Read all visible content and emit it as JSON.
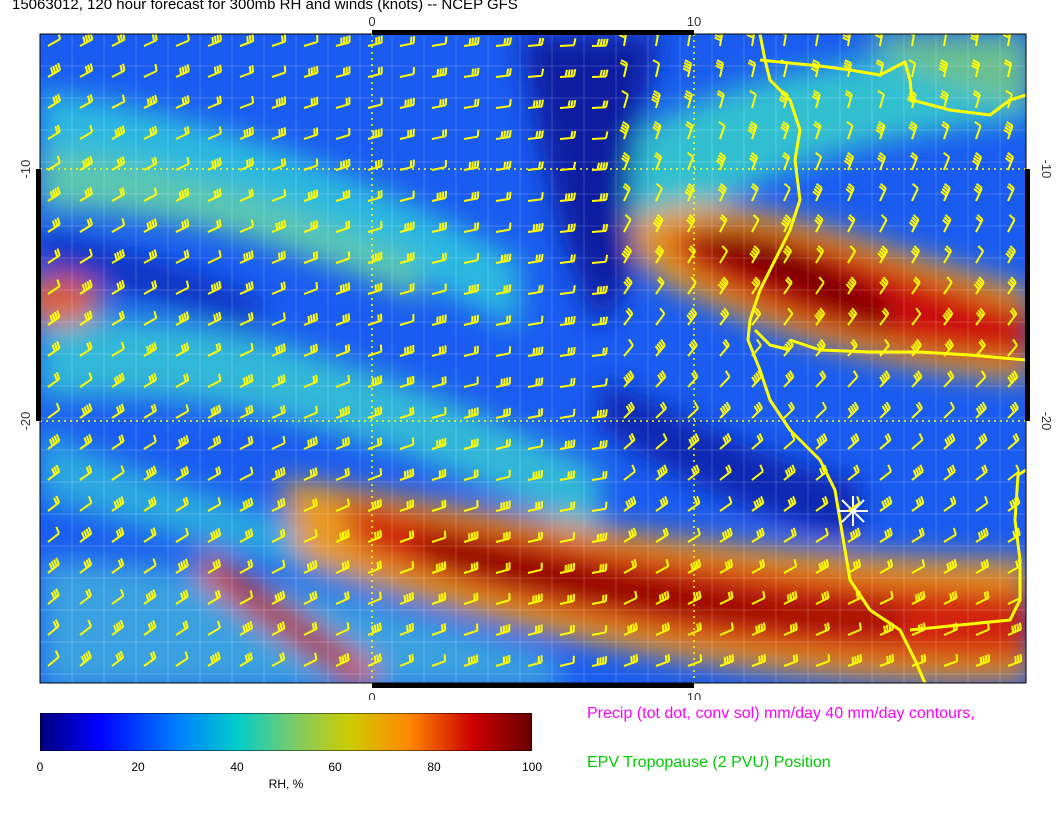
{
  "title": "15063012, 120 hour forecast for 300mb RH and winds (knots) -- NCEP GFS",
  "axes": {
    "top_ticks": [
      "0",
      "10"
    ],
    "bottom_ticks": [
      "0",
      "10"
    ],
    "left_ticks": [
      "-10",
      "-20"
    ],
    "right_ticks": [
      "-10",
      "-20"
    ]
  },
  "colorbar": {
    "label": "RH, %",
    "ticks": [
      "0",
      "20",
      "40",
      "60",
      "80",
      "100"
    ],
    "colors": [
      "#00007f",
      "#0000ff",
      "#007fff",
      "#00cccc",
      "#7fcc66",
      "#cccc00",
      "#ff8800",
      "#cc0000",
      "#660000"
    ]
  },
  "legend": {
    "precip": "Precip (tot dot, conv sol) mm/day 40 mm/day contours,",
    "epv": "EPV Tropopause (2 PVU) Position"
  },
  "colors": {
    "barb": "#ffff00",
    "coast": "#ffff00",
    "gridline": "#ffffff"
  }
}
